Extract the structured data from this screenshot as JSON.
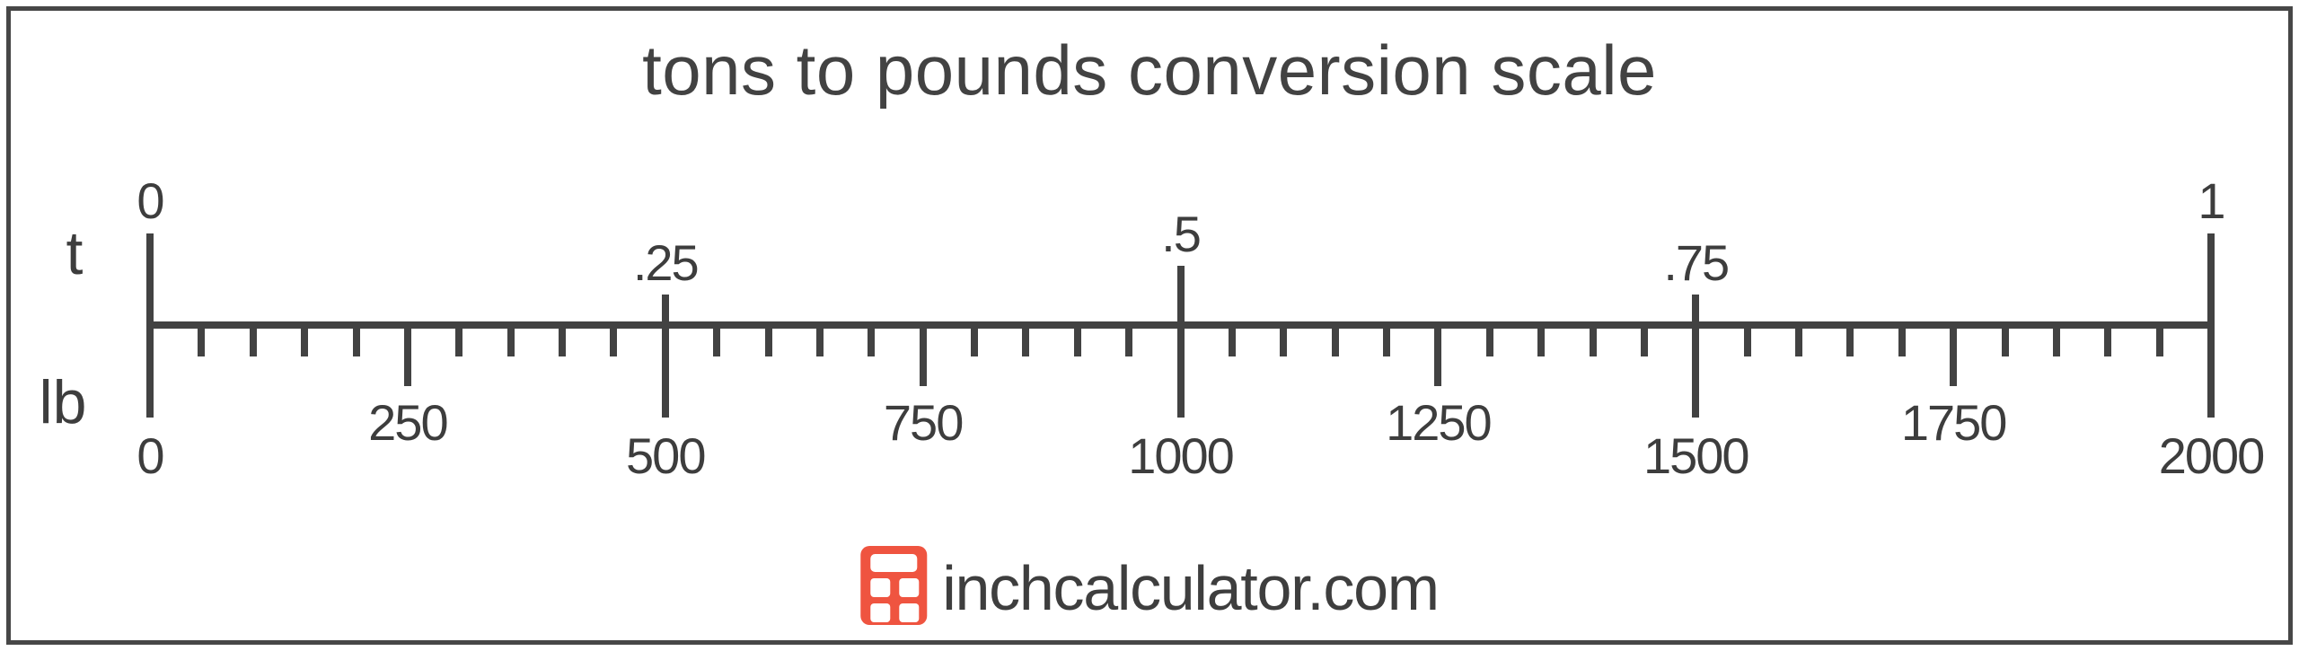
{
  "title": {
    "text": "tons to pounds conversion scale"
  },
  "colors": {
    "ink": "#424242",
    "text": "#3d3d3d",
    "frame_border": "#474747",
    "background": "#ffffff",
    "logo_red": "#ef5440",
    "logo_text_color": "#3e3e3e"
  },
  "chart_data": {
    "type": "scale",
    "subtype": "dual-axis-conversion-ruler",
    "title": "tons to pounds conversion scale",
    "grid": false,
    "top_axis": {
      "unit": "t",
      "range": [
        0,
        1
      ],
      "ticks": [
        {
          "value": 0,
          "label": "0",
          "size": "end"
        },
        {
          "value": 0.25,
          "label": ".25",
          "size": "quarter"
        },
        {
          "value": 0.5,
          "label": ".5",
          "size": "half"
        },
        {
          "value": 0.75,
          "label": ".75",
          "size": "quarter"
        },
        {
          "value": 1,
          "label": "1",
          "size": "end"
        }
      ]
    },
    "bottom_axis": {
      "unit": "lb",
      "range": [
        0,
        2000
      ],
      "minor_tick_step": 50,
      "labeled_ticks": [
        {
          "value": 0,
          "label": "0",
          "size": "major"
        },
        {
          "value": 250,
          "label": "250",
          "size": "medium"
        },
        {
          "value": 500,
          "label": "500",
          "size": "major"
        },
        {
          "value": 750,
          "label": "750",
          "size": "medium"
        },
        {
          "value": 1000,
          "label": "1000",
          "size": "major"
        },
        {
          "value": 1250,
          "label": "1250",
          "size": "medium"
        },
        {
          "value": 1500,
          "label": "1500",
          "size": "major"
        },
        {
          "value": 1750,
          "label": "1750",
          "size": "medium"
        },
        {
          "value": 2000,
          "label": "2000",
          "size": "major"
        }
      ]
    }
  },
  "logo": {
    "text": "inchcalculator.com",
    "icon": "calculator-icon"
  }
}
